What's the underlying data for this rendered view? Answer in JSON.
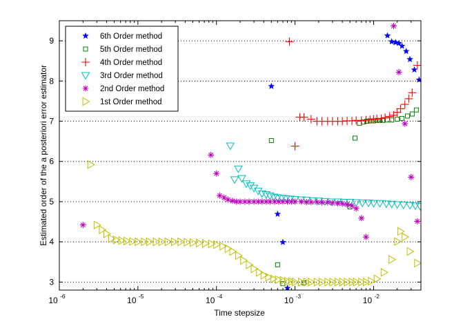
{
  "chart_data": {
    "type": "scatter",
    "title": "",
    "xlabel": "Time stepsize",
    "ylabel": "Estimated order of the a posteriori error estimator",
    "xscale": "log",
    "xlim": [
      1e-06,
      0.04
    ],
    "ylim": [
      2.8,
      9.5
    ],
    "grid": "y-dotted",
    "legend_position": "top-left",
    "x_ticks": [
      {
        "value": 1e-06,
        "base": "10",
        "exp": "-6"
      },
      {
        "value": 1e-05,
        "base": "10",
        "exp": "-5"
      },
      {
        "value": 0.0001,
        "base": "10",
        "exp": "-4"
      },
      {
        "value": 0.001,
        "base": "10",
        "exp": "-3"
      },
      {
        "value": 0.01,
        "base": "10",
        "exp": "-2"
      }
    ],
    "y_ticks": [
      3,
      4,
      5,
      6,
      7,
      8,
      9
    ],
    "series": [
      {
        "name": "6th Order method",
        "marker": "star",
        "color": "#0000ff",
        "x": [
          0.0005,
          0.0006,
          0.0007,
          0.0008,
          0.015,
          0.017,
          0.019,
          0.021,
          0.023,
          0.026,
          0.029,
          0.033,
          0.038
        ],
        "y": [
          7.87,
          4.69,
          3.99,
          2.85,
          9.13,
          8.98,
          8.96,
          8.94,
          8.87,
          8.74,
          8.54,
          8.28,
          8.03
        ]
      },
      {
        "name": "5th Order method",
        "marker": "square",
        "color": "#008000",
        "x": [
          0.0005,
          0.0006,
          0.0007,
          0.0013,
          0.005,
          0.0058,
          0.0066,
          0.0074,
          0.0082,
          0.009,
          0.01,
          0.011,
          0.012,
          0.013,
          0.015,
          0.017,
          0.02,
          0.023,
          0.027,
          0.031,
          0.035
        ],
        "y": [
          6.52,
          3.43,
          2.96,
          2.98,
          4.87,
          6.58,
          6.95,
          6.98,
          7.0,
          7.01,
          7.01,
          7.02,
          7.02,
          7.02,
          7.03,
          7.03,
          7.05,
          7.07,
          7.13,
          7.18,
          7.28
        ]
      },
      {
        "name": "4th Order method",
        "marker": "plus",
        "color": "#ff0000",
        "x": [
          0.00085,
          0.001,
          0.00115,
          0.0013,
          0.0016,
          0.0019,
          0.0022,
          0.0026,
          0.003,
          0.0035,
          0.004,
          0.0046,
          0.0053,
          0.006,
          0.007,
          0.008,
          0.009,
          0.01,
          0.011,
          0.0125,
          0.014,
          0.016,
          0.018,
          0.02,
          0.022,
          0.025,
          0.028,
          0.031,
          0.036
        ],
        "y": [
          8.98,
          6.38,
          7.1,
          7.1,
          7.05,
          7.0,
          7.0,
          7.0,
          7.0,
          7.0,
          7.0,
          7.01,
          7.01,
          7.02,
          7.02,
          7.03,
          7.04,
          7.05,
          7.06,
          7.07,
          7.09,
          7.12,
          7.15,
          7.22,
          7.31,
          7.42,
          7.56,
          7.71,
          8.39
        ]
      },
      {
        "name": "3rd Order method",
        "marker": "triangle-down",
        "color": "#00bfbf",
        "x": [
          0.00015,
          0.00017,
          0.00019,
          0.00021,
          0.00024,
          0.00027,
          0.0003,
          0.00034,
          0.00038,
          0.00043,
          0.00048,
          0.00054,
          0.0006,
          0.00068,
          0.00077,
          0.00087,
          0.001,
          0.0012,
          0.0014,
          0.0017,
          0.002,
          0.0024,
          0.0029,
          0.0035,
          0.0042,
          0.005,
          0.006,
          0.0072,
          0.0086,
          0.01,
          0.012,
          0.0145,
          0.017,
          0.02,
          0.024,
          0.029,
          0.034,
          0.039
        ],
        "y": [
          6.39,
          5.55,
          5.82,
          5.58,
          5.45,
          5.4,
          5.34,
          5.27,
          5.2,
          5.18,
          5.15,
          5.12,
          5.1,
          5.09,
          5.08,
          5.07,
          5.06,
          5.05,
          5.04,
          5.03,
          5.02,
          5.01,
          5.0,
          5.0,
          4.99,
          4.99,
          4.98,
          4.97,
          4.97,
          4.96,
          4.96,
          4.95,
          4.94,
          4.93,
          4.92,
          4.91,
          4.9,
          4.89
        ]
      },
      {
        "name": "2nd Order method",
        "marker": "asterisk",
        "color": "#bf00bf",
        "x": [
          2e-06,
          8.5e-05,
          0.0001,
          0.00011,
          0.000125,
          0.00014,
          0.00016,
          0.00018,
          0.0002,
          0.00023,
          0.00026,
          0.0003,
          0.00034,
          0.00038,
          0.00043,
          0.00048,
          0.00055,
          0.00062,
          0.0007,
          0.0008,
          0.0009,
          0.001,
          0.0012,
          0.0014,
          0.0016,
          0.0019,
          0.0022,
          0.0026,
          0.003,
          0.0035,
          0.004,
          0.0046,
          0.0053,
          0.006,
          0.007,
          0.008,
          0.018,
          0.021,
          0.025,
          0.03,
          0.036
        ],
        "y": [
          4.42,
          6.16,
          5.7,
          5.15,
          5.1,
          5.05,
          5.02,
          5.0,
          5.0,
          5.0,
          5.0,
          5.0,
          5.0,
          5.0,
          5.0,
          5.0,
          5.0,
          5.0,
          5.0,
          5.0,
          5.0,
          5.0,
          5.0,
          4.99,
          4.99,
          4.99,
          4.98,
          4.98,
          4.97,
          4.96,
          4.95,
          4.93,
          4.9,
          4.83,
          4.59,
          4.12,
          9.37,
          8.22,
          6.94,
          5.61,
          4.51
        ]
      },
      {
        "name": "1st Order method",
        "marker": "triangle-right",
        "color": "#bfbf00",
        "x": [
          2.5e-06,
          3e-06,
          3.5e-06,
          4e-06,
          4.6e-06,
          5.3e-06,
          6.2e-06,
          7.2e-06,
          8.5e-06,
          1e-05,
          1.2e-05,
          1.4e-05,
          1.7e-05,
          2e-05,
          2.4e-05,
          2.9e-05,
          3.5e-05,
          4.2e-05,
          5e-05,
          6e-05,
          7.2e-05,
          8.6e-05,
          0.0001,
          0.00012,
          0.00014,
          0.00016,
          0.00019,
          0.00022,
          0.00026,
          0.0003,
          0.00035,
          0.0004,
          0.00046,
          0.00053,
          0.00061,
          0.0007,
          0.0008,
          0.0009,
          0.001,
          0.0012,
          0.0014,
          0.0016,
          0.0019,
          0.0022,
          0.0026,
          0.003,
          0.0035,
          0.004,
          0.0046,
          0.0053,
          0.006,
          0.007,
          0.008,
          0.0093,
          0.011,
          0.0135,
          0.017,
          0.02,
          0.022,
          0.025,
          0.029,
          0.036
        ],
        "y": [
          5.92,
          4.42,
          4.3,
          4.2,
          4.08,
          4.05,
          4.03,
          4.02,
          4.01,
          4.0,
          4.0,
          4.0,
          4.0,
          4.0,
          4.0,
          4.0,
          4.0,
          3.99,
          3.98,
          3.97,
          3.96,
          3.95,
          3.93,
          3.89,
          3.83,
          3.76,
          3.66,
          3.54,
          3.43,
          3.33,
          3.24,
          3.17,
          3.12,
          3.08,
          3.06,
          3.04,
          3.02,
          3.01,
          3.0,
          3.0,
          3.0,
          3.0,
          3.0,
          3.0,
          3.0,
          3.0,
          3.0,
          3.0,
          3.0,
          3.0,
          3.0,
          3.0,
          3.0,
          3.02,
          3.08,
          3.24,
          3.56,
          4.01,
          4.26,
          4.12,
          3.76,
          3.47
        ]
      }
    ]
  }
}
